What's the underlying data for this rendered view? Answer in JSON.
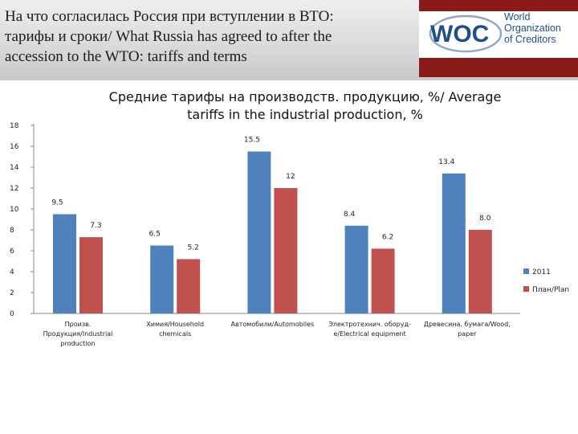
{
  "header": {
    "title_lines": [
      "На что согласилась Россия при вступлении в ВТО:",
      "тарифы и сроки/ What Russia has agreed to after the",
      "accession to the WTO: tariffs and terms"
    ],
    "logo": {
      "mark": "WOC",
      "text_lines": [
        "World",
        "Organization",
        "of Creditors"
      ],
      "colors": {
        "mark": "#1f4f86",
        "accent": "#8b1a1a"
      }
    }
  },
  "chart_data": {
    "type": "bar",
    "title_lines": [
      "Средние тарифы на производств. продукцию, %/ Average",
      "tariffs in the industrial production, %"
    ],
    "categories": [
      [
        "Произв.",
        "Продукция/Industrial",
        "production"
      ],
      [
        "Химия/Household",
        "chemicals"
      ],
      [
        "Автомобили/Automobiles"
      ],
      [
        "Электротехнич. оборуд-",
        "е/Electrical equipment"
      ],
      [
        "Древесина, бумага/Wood,",
        "paper"
      ]
    ],
    "series": [
      {
        "name": "2011",
        "values": [
          9.5,
          6.5,
          15.5,
          8.4,
          13.4
        ],
        "labels": [
          "9.5",
          "6.5",
          "15.5",
          "8.4",
          "13.4"
        ],
        "color": "#4f81bd"
      },
      {
        "name": "План/Plan",
        "values": [
          7.3,
          5.2,
          12,
          6.2,
          8.0
        ],
        "labels": [
          "7.3",
          "5.2",
          "12",
          "6.2",
          "8.0"
        ],
        "color": "#c0504d"
      }
    ],
    "yticks": [
      "0",
      "2",
      "4",
      "6",
      "8",
      "10",
      "12",
      "14",
      "16",
      "18"
    ],
    "ylim": [
      0,
      18
    ],
    "grid": false,
    "legend_position": "right"
  }
}
